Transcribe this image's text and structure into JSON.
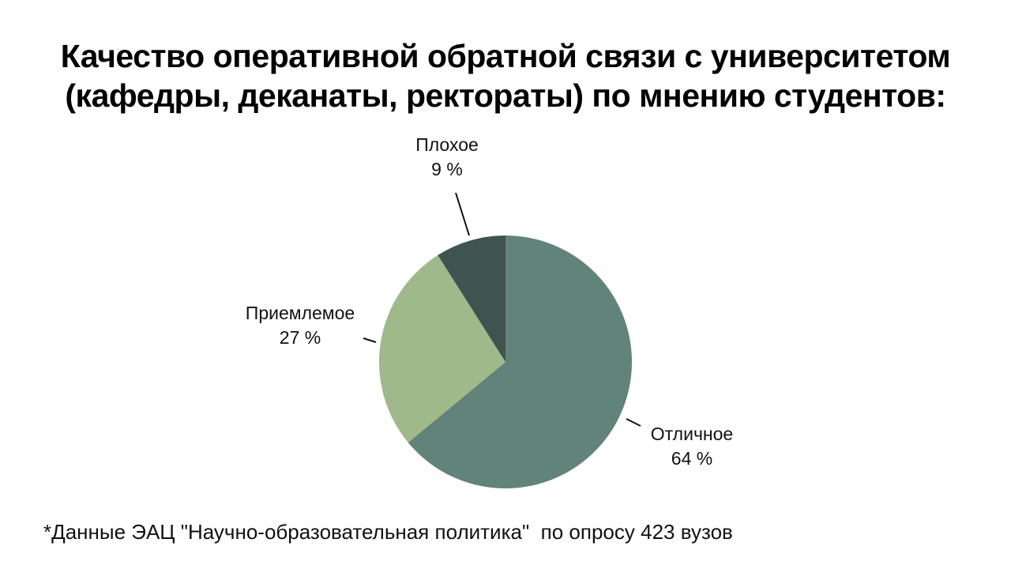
{
  "title": {
    "line1": "Качество оперативной обратной связи с университетом",
    "line2": "(кафедры, деканаты, ректораты) по мнению студентов:"
  },
  "chart_data": {
    "type": "pie",
    "title": "Качество оперативной обратной связи с университетом (кафедры, деканаты, ректораты) по мнению студентов:",
    "slices": [
      {
        "label": "Отличное",
        "value": 64,
        "value_label": "64 %",
        "color": "#62837a"
      },
      {
        "label": "Приемлемое",
        "value": 27,
        "value_label": "27 %",
        "color": "#9fb98b"
      },
      {
        "label": "Плохое",
        "value": 9,
        "value_label": "9 %",
        "color": "#3f5350"
      }
    ],
    "start": "12 o'clock",
    "direction": "clockwise",
    "unit": "%"
  },
  "footnote": "*Данные ЭАЦ \"Научно-образовательная политика\"  по опросу 423 вузов"
}
